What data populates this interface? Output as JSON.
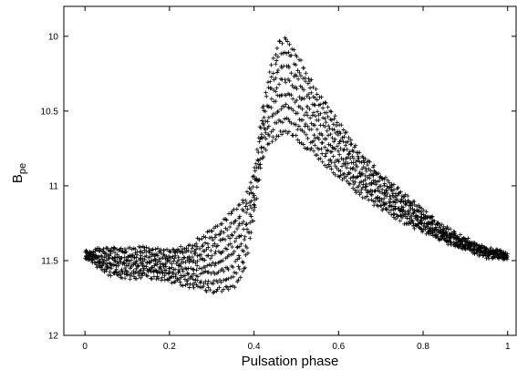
{
  "chart_data": {
    "type": "scatter",
    "title": "",
    "xlabel": "Pulsation phase",
    "ylabel_main": "B",
    "ylabel_sub": "pe",
    "xlim": [
      -0.05,
      1.02
    ],
    "ylim": [
      9.8,
      12.0
    ],
    "y_inverted": true,
    "marker": "plus",
    "grid": false,
    "legend": "none",
    "x_ticks": [
      {
        "value": 0,
        "label": "0"
      },
      {
        "value": 0.2,
        "label": "0.2"
      },
      {
        "value": 0.4,
        "label": "0.4"
      },
      {
        "value": 0.6,
        "label": "0.6"
      },
      {
        "value": 0.8,
        "label": "0.8"
      },
      {
        "value": 1,
        "label": "1"
      }
    ],
    "y_ticks": [
      {
        "value": 10,
        "label": "10"
      },
      {
        "value": 10.5,
        "label": "10.5"
      },
      {
        "value": 11,
        "label": "11"
      },
      {
        "value": 11.5,
        "label": "11.5"
      },
      {
        "value": 12,
        "label": "12"
      }
    ],
    "envelope_phase": [
      0.0,
      0.05,
      0.1,
      0.15,
      0.2,
      0.25,
      0.3,
      0.35,
      0.38,
      0.4,
      0.42,
      0.44,
      0.46,
      0.48,
      0.5,
      0.52,
      0.55,
      0.6,
      0.65,
      0.7,
      0.75,
      0.8,
      0.85,
      0.9,
      0.95,
      1.0
    ],
    "envelope_bright": [
      11.44,
      11.42,
      11.43,
      11.42,
      11.43,
      11.4,
      11.3,
      11.18,
      11.08,
      10.9,
      10.5,
      10.2,
      10.04,
      10.02,
      10.12,
      10.22,
      10.38,
      10.58,
      10.78,
      10.93,
      11.05,
      11.17,
      11.28,
      11.36,
      11.42,
      11.46
    ],
    "envelope_faint": [
      11.47,
      11.58,
      11.61,
      11.6,
      11.63,
      11.67,
      11.7,
      11.68,
      11.55,
      11.2,
      10.8,
      10.7,
      10.65,
      10.64,
      10.68,
      10.73,
      10.8,
      10.93,
      11.05,
      11.15,
      11.23,
      11.3,
      11.37,
      11.42,
      11.47,
      11.48
    ],
    "cycles": 8,
    "points_per_cycle": 230
  }
}
